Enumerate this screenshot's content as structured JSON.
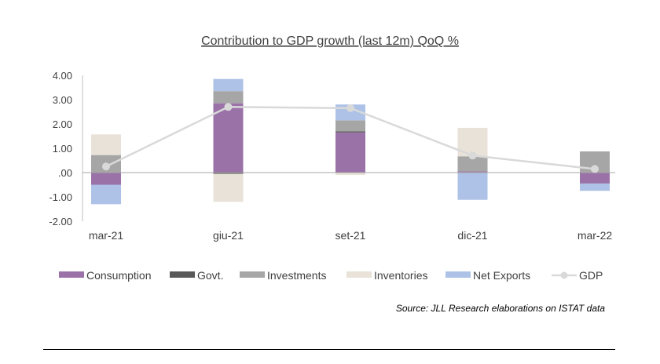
{
  "chart_data": {
    "type": "bar",
    "stacked": true,
    "title": "Contribution to GDP growth (last 12m) QoQ %",
    "categories": [
      "mar-21",
      "giu-21",
      "set-21",
      "dic-21",
      "mar-22"
    ],
    "ylim": [
      -2.0,
      4.0
    ],
    "yticks": [
      4.0,
      3.0,
      2.0,
      1.0,
      0.0,
      -1.0,
      -2.0
    ],
    "ytick_labels": [
      "4.00",
      "3.00",
      "2.00",
      "1.00",
      ".00",
      "-1.00",
      "-2.00"
    ],
    "series": [
      {
        "name": "Consumption",
        "color": "#9b72a8",
        "values": [
          -0.5,
          2.85,
          1.65,
          0.05,
          -0.45
        ]
      },
      {
        "name": "Govt.",
        "color": "#595959",
        "values": [
          0.0,
          -0.05,
          0.05,
          0.0,
          0.0
        ]
      },
      {
        "name": "Investments",
        "color": "#a6a6a6",
        "values": [
          0.72,
          0.5,
          0.45,
          0.62,
          0.87
        ]
      },
      {
        "name": "Inventories",
        "color": "#e8e2d8",
        "values": [
          0.85,
          -1.15,
          -0.1,
          1.17,
          0.0
        ]
      },
      {
        "name": "Net Exports",
        "color": "#adc2e6",
        "values": [
          -0.8,
          0.5,
          0.65,
          -1.12,
          -0.3
        ]
      }
    ],
    "line_series": {
      "name": "GDP",
      "color": "#d9d9d9",
      "values": [
        0.25,
        2.7,
        2.65,
        0.7,
        0.15
      ]
    },
    "legend": [
      "Consumption",
      "Govt.",
      "Investments",
      "Inventories",
      "Net Exports",
      "GDP"
    ],
    "legend_position": "bottom"
  },
  "source": "Source: JLL Research elaborations on ISTAT data"
}
